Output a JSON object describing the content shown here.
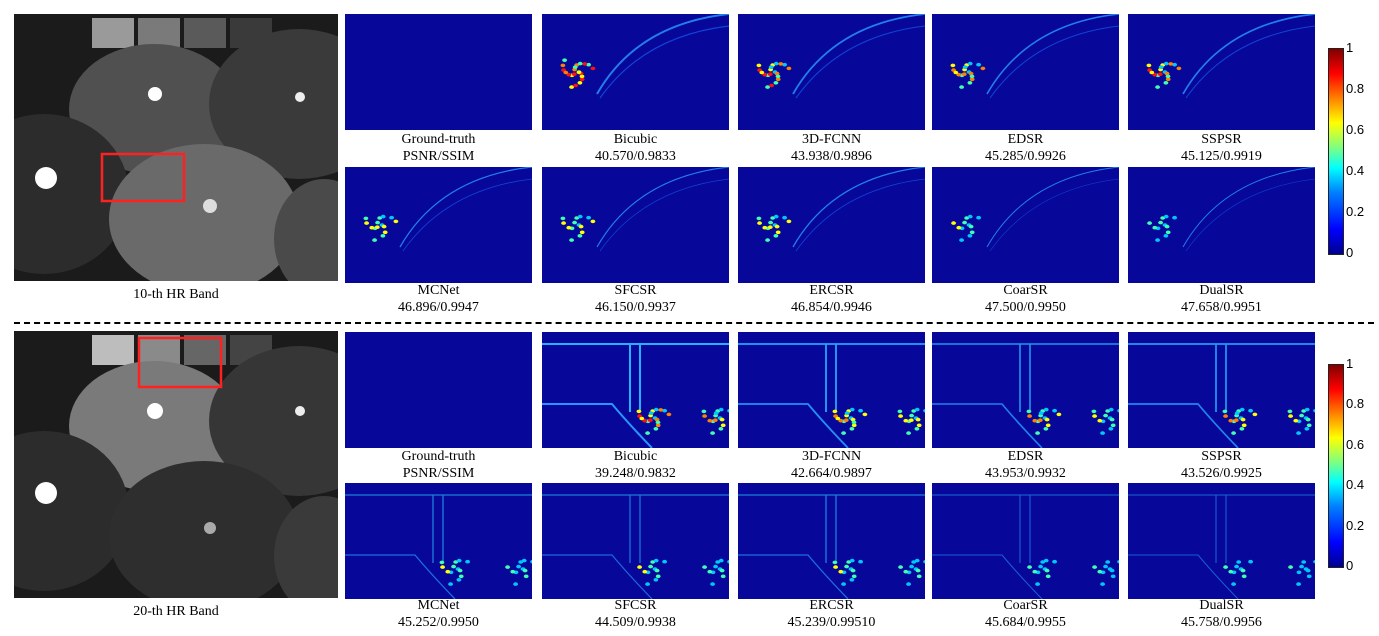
{
  "top": {
    "band_label": "10-th HR  Band",
    "row1": [
      {
        "name": "Ground-truth",
        "score": "PSNR/SSIM"
      },
      {
        "name": "Bicubic",
        "score": "40.570/0.9833"
      },
      {
        "name": "3D-FCNN",
        "score": "43.938/0.9896"
      },
      {
        "name": "EDSR",
        "score": "45.285/0.9926"
      },
      {
        "name": "SSPSR",
        "score": "45.125/0.9919"
      }
    ],
    "row2": [
      {
        "name": "MCNet",
        "score": "46.896/0.9947"
      },
      {
        "name": "SFCSR",
        "score": "46.150/0.9937"
      },
      {
        "name": "ERCSR",
        "score": "46.854/0.9946"
      },
      {
        "name": "CoarSR",
        "score": "47.500/0.9950"
      },
      {
        "name": "DualSR",
        "score": "47.658/0.9951"
      }
    ]
  },
  "bottom": {
    "band_label": "20-th HR  Band",
    "row1": [
      {
        "name": "Ground-truth",
        "score": "PSNR/SSIM"
      },
      {
        "name": "Bicubic",
        "score": "39.248/0.9832"
      },
      {
        "name": "3D-FCNN",
        "score": "42.664/0.9897"
      },
      {
        "name": "EDSR",
        "score": "43.953/0.9932"
      },
      {
        "name": "SSPSR",
        "score": "43.526/0.9925"
      }
    ],
    "row2": [
      {
        "name": "MCNet",
        "score": "45.252/0.9950"
      },
      {
        "name": "SFCSR",
        "score": "44.509/0.9938"
      },
      {
        "name": "ERCSR",
        "score": "45.239/0.99510"
      },
      {
        "name": "CoarSR",
        "score": "45.684/0.9955"
      },
      {
        "name": "DualSR",
        "score": "45.758/0.9956"
      }
    ]
  },
  "colorbar": {
    "ticks": [
      "1",
      "0.8",
      "0.6",
      "0.4",
      "0.2",
      "0"
    ],
    "colormap": "jet"
  },
  "colors": {
    "roi_box": "#ff2020",
    "error_background": "#07079a"
  }
}
